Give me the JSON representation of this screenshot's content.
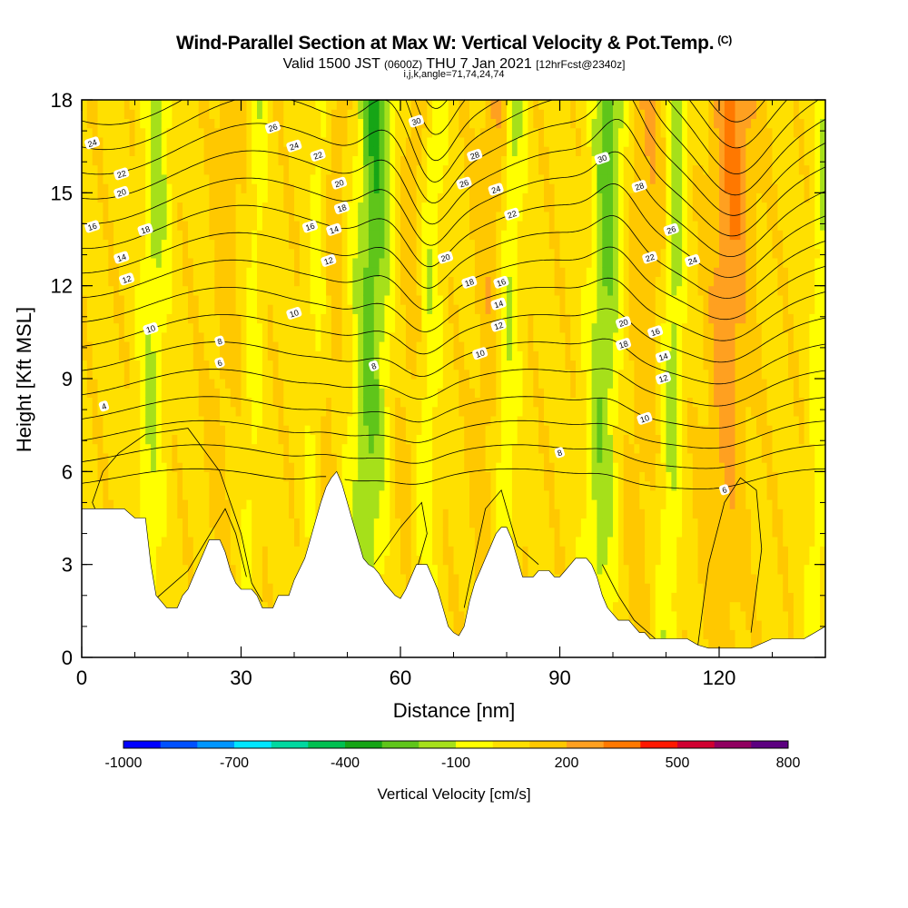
{
  "title": {
    "main": "Wind-Parallel Section at Max W: Vertical Velocity & Pot.Temp.",
    "copyright": "(C)",
    "valid_prefix": "Valid 1500 JST",
    "valid_utc": "(0600Z)",
    "valid_date": "THU 7 Jan 2021",
    "forecast": "[12hrFcst@2340z]",
    "indices": "i,j,k,angle=71,74,24,74"
  },
  "chart_data": {
    "type": "heatmap",
    "xlabel": "Distance [nm]",
    "ylabel": "Height [Kft MSL]",
    "xlim": [
      0,
      140
    ],
    "ylim": [
      0,
      18
    ],
    "xticks": [
      "0",
      "30",
      "60",
      "90",
      "120"
    ],
    "xtick_values": [
      0,
      30,
      60,
      90,
      120
    ],
    "yticks": [
      "0",
      "3",
      "6",
      "9",
      "12",
      "15",
      "18"
    ],
    "ytick_values": [
      0,
      3,
      6,
      9,
      12,
      15,
      18
    ],
    "colorbar": {
      "title": "Vertical Velocity [cm/s]",
      "tick_labels": [
        "-1000",
        "-700",
        "-400",
        "-100",
        "200",
        "500",
        "800"
      ],
      "tick_values": [
        -1000,
        -700,
        -400,
        -100,
        200,
        500,
        800
      ],
      "levels": [
        -1000,
        -900,
        -800,
        -700,
        -600,
        -500,
        -400,
        -300,
        -200,
        -100,
        0,
        100,
        200,
        300,
        400,
        500,
        600,
        700,
        800
      ],
      "colors": [
        "#0000ff",
        "#0050ff",
        "#0096ff",
        "#00e6ff",
        "#00d8a0",
        "#00c050",
        "#16a516",
        "#5fc51a",
        "#a6e01a",
        "#ffff00",
        "#ffe000",
        "#ffc800",
        "#ffa020",
        "#ff7800",
        "#ff1800",
        "#d00030",
        "#900060",
        "#5c0080"
      ]
    },
    "updraft_bands_nm": [
      {
        "x": 12,
        "w": 2.5,
        "strength": 0.6
      },
      {
        "x": 31,
        "w": 1.5,
        "strength": 0.35
      },
      {
        "x": 43,
        "w": 2.0,
        "strength": 0.4
      },
      {
        "x": 53,
        "w": 3.5,
        "strength": 1.0
      },
      {
        "x": 64,
        "w": 2.0,
        "strength": 0.5
      },
      {
        "x": 79,
        "w": 2.0,
        "strength": 0.55
      },
      {
        "x": 97,
        "w": 3.0,
        "strength": 0.9
      },
      {
        "x": 110,
        "w": 2.0,
        "strength": 0.7
      },
      {
        "x": 138,
        "w": 2.0,
        "strength": 0.5
      }
    ],
    "downdraft_bands_nm": [
      {
        "x": 25,
        "w": 2.5,
        "strength": 0.4
      },
      {
        "x": 45,
        "w": 2.5,
        "strength": 0.5
      },
      {
        "x": 60,
        "w": 3.0,
        "strength": 0.4
      },
      {
        "x": 75,
        "w": 3.0,
        "strength": 0.5
      },
      {
        "x": 104,
        "w": 4.0,
        "strength": 0.5
      },
      {
        "x": 120,
        "w": 4.0,
        "strength": 1.0
      }
    ],
    "terrain_kft": [
      [
        0,
        4.8
      ],
      [
        3,
        4.8
      ],
      [
        6,
        4.8
      ],
      [
        8,
        4.8
      ],
      [
        10,
        4.5
      ],
      [
        12,
        4.5
      ],
      [
        13,
        3.0
      ],
      [
        14,
        2.0
      ],
      [
        15,
        1.8
      ],
      [
        16,
        1.6
      ],
      [
        18,
        1.6
      ],
      [
        19,
        2.0
      ],
      [
        20,
        2.2
      ],
      [
        21,
        2.6
      ],
      [
        22,
        3.0
      ],
      [
        23,
        3.4
      ],
      [
        24,
        3.8
      ],
      [
        26,
        3.8
      ],
      [
        27,
        3.4
      ],
      [
        28,
        2.8
      ],
      [
        29,
        2.4
      ],
      [
        30,
        2.2
      ],
      [
        32,
        2.2
      ],
      [
        33,
        2.0
      ],
      [
        34,
        1.6
      ],
      [
        36,
        1.6
      ],
      [
        37,
        2.0
      ],
      [
        39,
        2.0
      ],
      [
        40,
        2.5
      ],
      [
        42,
        3.2
      ],
      [
        43,
        3.8
      ],
      [
        44,
        4.4
      ],
      [
        45,
        5.0
      ],
      [
        46,
        5.5
      ],
      [
        47,
        5.8
      ],
      [
        48,
        6.0
      ],
      [
        49,
        5.6
      ],
      [
        50,
        5.0
      ],
      [
        51,
        4.4
      ],
      [
        52,
        3.8
      ],
      [
        53,
        3.2
      ],
      [
        54,
        3.0
      ],
      [
        55,
        2.9
      ],
      [
        56,
        2.7
      ],
      [
        57,
        2.4
      ],
      [
        58,
        2.2
      ],
      [
        59,
        2.0
      ],
      [
        60,
        1.9
      ],
      [
        61,
        2.2
      ],
      [
        62,
        2.6
      ],
      [
        63,
        3.0
      ],
      [
        65,
        3.0
      ],
      [
        66,
        2.6
      ],
      [
        67,
        2.2
      ],
      [
        68,
        1.6
      ],
      [
        69,
        1.0
      ],
      [
        70,
        0.8
      ],
      [
        71,
        0.7
      ],
      [
        72,
        1.0
      ],
      [
        73,
        1.8
      ],
      [
        74,
        2.4
      ],
      [
        75,
        2.8
      ],
      [
        76,
        3.2
      ],
      [
        77,
        3.6
      ],
      [
        78,
        4.0
      ],
      [
        79,
        4.2
      ],
      [
        80,
        4.2
      ],
      [
        81,
        3.8
      ],
      [
        82,
        3.2
      ],
      [
        83,
        2.6
      ],
      [
        84,
        2.6
      ],
      [
        85,
        2.6
      ],
      [
        86,
        2.8
      ],
      [
        88,
        2.8
      ],
      [
        89,
        2.6
      ],
      [
        90,
        2.6
      ],
      [
        91,
        2.8
      ],
      [
        92,
        3.0
      ],
      [
        93,
        3.2
      ],
      [
        95,
        3.2
      ],
      [
        96,
        3.0
      ],
      [
        97,
        2.6
      ],
      [
        98,
        2.0
      ],
      [
        99,
        1.6
      ],
      [
        100,
        1.4
      ],
      [
        101,
        1.2
      ],
      [
        103,
        1.2
      ],
      [
        104,
        1.0
      ],
      [
        105,
        0.8
      ],
      [
        106,
        0.8
      ],
      [
        107,
        0.6
      ],
      [
        110,
        0.6
      ],
      [
        112,
        0.6
      ],
      [
        114,
        0.6
      ],
      [
        116,
        0.4
      ],
      [
        118,
        0.3
      ],
      [
        120,
        0.3
      ],
      [
        122,
        0.3
      ],
      [
        124,
        0.3
      ],
      [
        126,
        0.3
      ],
      [
        130,
        0.6
      ],
      [
        132,
        0.6
      ],
      [
        134,
        0.6
      ],
      [
        136,
        0.6
      ],
      [
        138,
        0.8
      ],
      [
        140,
        1.0
      ]
    ],
    "potential_temperature_contours": {
      "levels_c": [
        4,
        6,
        8,
        10,
        12,
        14,
        16,
        18,
        20,
        22,
        24,
        26,
        28,
        30,
        32,
        34,
        36,
        38
      ],
      "labels": [
        {
          "text": "4",
          "x": 4.2,
          "y": 8.1
        },
        {
          "text": "6",
          "x": 26,
          "y": 9.5
        },
        {
          "text": "8",
          "x": 26,
          "y": 10.2
        },
        {
          "text": "10",
          "x": 13,
          "y": 10.6
        },
        {
          "text": "12",
          "x": 8.5,
          "y": 12.2
        },
        {
          "text": "14",
          "x": 7.5,
          "y": 12.9
        },
        {
          "text": "16",
          "x": 2,
          "y": 13.9
        },
        {
          "text": "18",
          "x": 12,
          "y": 13.8
        },
        {
          "text": "20",
          "x": 7.5,
          "y": 15.0
        },
        {
          "text": "22",
          "x": 7.5,
          "y": 15.6
        },
        {
          "text": "24",
          "x": 2,
          "y": 16.6
        },
        {
          "text": "26",
          "x": 36,
          "y": 17.1
        },
        {
          "text": "24",
          "x": 40,
          "y": 16.5
        },
        {
          "text": "22",
          "x": 44.5,
          "y": 16.2
        },
        {
          "text": "20",
          "x": 48.5,
          "y": 15.3
        },
        {
          "text": "18",
          "x": 49,
          "y": 14.5
        },
        {
          "text": "16",
          "x": 43,
          "y": 13.9
        },
        {
          "text": "14",
          "x": 47.5,
          "y": 13.8
        },
        {
          "text": "12",
          "x": 46.5,
          "y": 12.8
        },
        {
          "text": "10",
          "x": 40,
          "y": 11.1
        },
        {
          "text": "8",
          "x": 55,
          "y": 9.4
        },
        {
          "text": "30",
          "x": 63,
          "y": 17.3
        },
        {
          "text": "28",
          "x": 74,
          "y": 16.2
        },
        {
          "text": "26",
          "x": 72,
          "y": 15.3
        },
        {
          "text": "24",
          "x": 78,
          "y": 15.1
        },
        {
          "text": "22",
          "x": 81,
          "y": 14.3
        },
        {
          "text": "20",
          "x": 68.5,
          "y": 12.9
        },
        {
          "text": "18",
          "x": 73,
          "y": 12.1
        },
        {
          "text": "16",
          "x": 79,
          "y": 12.1
        },
        {
          "text": "14",
          "x": 78.5,
          "y": 11.4
        },
        {
          "text": "12",
          "x": 78.5,
          "y": 10.7
        },
        {
          "text": "10",
          "x": 75,
          "y": 9.8
        },
        {
          "text": "8",
          "x": 90,
          "y": 6.6
        },
        {
          "text": "30",
          "x": 98,
          "y": 16.1
        },
        {
          "text": "28",
          "x": 105,
          "y": 15.2
        },
        {
          "text": "26",
          "x": 111,
          "y": 13.8
        },
        {
          "text": "24",
          "x": 115,
          "y": 12.8
        },
        {
          "text": "22",
          "x": 107,
          "y": 12.9
        },
        {
          "text": "20",
          "x": 102,
          "y": 10.8
        },
        {
          "text": "18",
          "x": 102,
          "y": 10.1
        },
        {
          "text": "16",
          "x": 108,
          "y": 10.5
        },
        {
          "text": "14",
          "x": 109.5,
          "y": 9.7
        },
        {
          "text": "12",
          "x": 109.5,
          "y": 9.0
        },
        {
          "text": "10",
          "x": 106,
          "y": 7.7
        },
        {
          "text": "6",
          "x": 121,
          "y": 5.4
        }
      ]
    }
  }
}
